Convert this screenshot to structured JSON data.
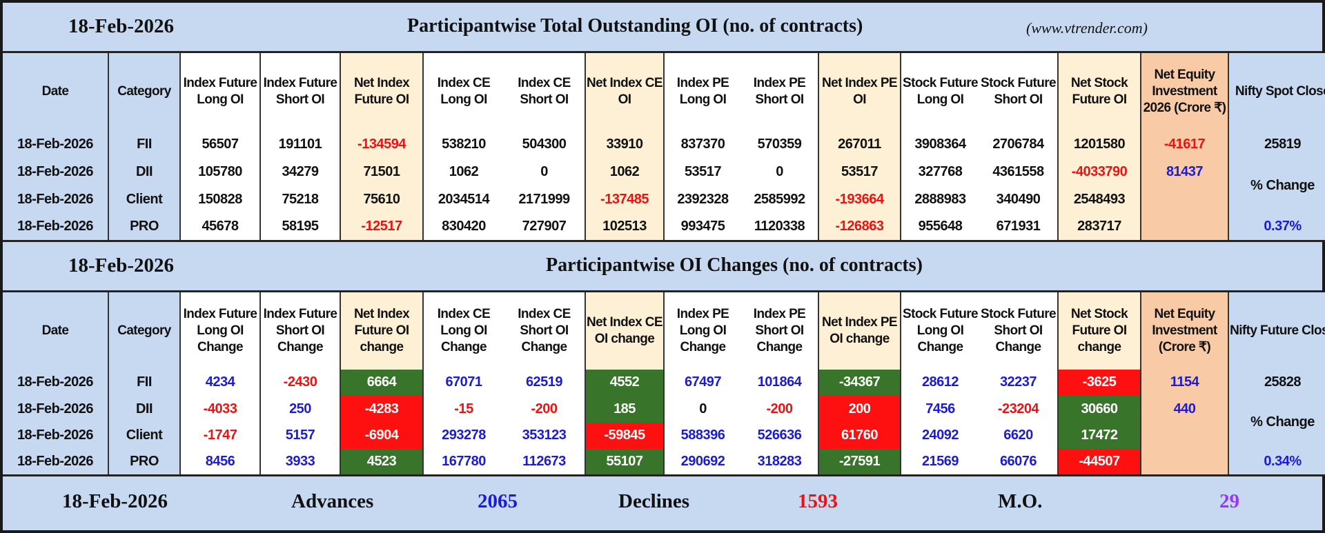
{
  "table1": {
    "date": "18-Feb-2026",
    "title": "Participantwise Total Outstanding OI (no. of contracts)",
    "site": "(www.vtrender.com)",
    "headers": [
      "Date",
      "Category",
      "Index Future Long OI",
      "Index Future Short OI",
      "Net Index Future OI",
      "Index CE Long OI",
      "Index CE Short OI",
      "Net Index CE OI",
      "Index PE Long OI",
      "Index PE Short OI",
      "Net Index PE OI",
      "Stock Future Long OI",
      "Stock Future Short OI",
      "Net Stock Future OI",
      "Net Equity Investment 2026 (Crore ₹)",
      "Nifty Spot Close"
    ],
    "rows": [
      {
        "date": "18-Feb-2026",
        "category": "FII",
        "values": [
          "56507",
          "191101",
          "-134594",
          "538210",
          "504300",
          "33910",
          "837370",
          "570359",
          "267011",
          "3908364",
          "2706784",
          "1201580"
        ],
        "net_equity": "-41617"
      },
      {
        "date": "18-Feb-2026",
        "category": "DII",
        "values": [
          "105780",
          "34279",
          "71501",
          "1062",
          "0",
          "1062",
          "53517",
          "0",
          "53517",
          "327768",
          "4361558",
          "-4033790"
        ],
        "net_equity": "81437"
      },
      {
        "date": "18-Feb-2026",
        "category": "Client",
        "values": [
          "150828",
          "75218",
          "75610",
          "2034514",
          "2171999",
          "-137485",
          "2392328",
          "2585992",
          "-193664",
          "2888983",
          "340490",
          "2548493"
        ],
        "net_equity": ""
      },
      {
        "date": "18-Feb-2026",
        "category": "PRO",
        "values": [
          "45678",
          "58195",
          "-12517",
          "830420",
          "727907",
          "102513",
          "993475",
          "1120338",
          "-126863",
          "955648",
          "671931",
          "283717"
        ],
        "net_equity": ""
      }
    ],
    "nifty": {
      "value": "25819",
      "change_label": "% Change",
      "change": "0.37%"
    }
  },
  "table2": {
    "date": "18-Feb-2026",
    "title": "Participantwise OI Changes (no. of contracts)",
    "headers": [
      "Date",
      "Category",
      "Index Future Long OI Change",
      "Index Future Short OI Change",
      "Net Index Future OI change",
      "Index CE Long OI Change",
      "Index CE Short OI Change",
      "Net Index CE OI change",
      "Index PE Long OI Change",
      "Index PE Short OI Change",
      "Net Index PE OI change",
      "Stock Future Long OI Change",
      "Stock Future Short OI Change",
      "Net Stock Future OI change",
      "Net Equity Investment (Crore ₹)",
      "Nifty Future Close"
    ],
    "rows": [
      {
        "date": "18-Feb-2026",
        "category": "FII",
        "values": [
          "4234",
          "-2430",
          "6664",
          "67071",
          "62519",
          "4552",
          "67497",
          "101864",
          "-34367",
          "28612",
          "32237",
          "-3625"
        ],
        "highlights": [
          "green",
          "green",
          "green",
          "red"
        ],
        "net_equity": "1154"
      },
      {
        "date": "18-Feb-2026",
        "category": "DII",
        "values": [
          "-4033",
          "250",
          "-4283",
          "-15",
          "-200",
          "185",
          "0",
          "-200",
          "200",
          "7456",
          "-23204",
          "30660"
        ],
        "highlights": [
          "red",
          "green",
          "red",
          "green"
        ],
        "net_equity": "440"
      },
      {
        "date": "18-Feb-2026",
        "category": "Client",
        "values": [
          "-1747",
          "5157",
          "-6904",
          "293278",
          "353123",
          "-59845",
          "588396",
          "526636",
          "61760",
          "24092",
          "6620",
          "17472"
        ],
        "highlights": [
          "red",
          "red",
          "red",
          "green"
        ],
        "net_equity": ""
      },
      {
        "date": "18-Feb-2026",
        "category": "PRO",
        "values": [
          "8456",
          "3933",
          "4523",
          "167780",
          "112673",
          "55107",
          "290692",
          "318283",
          "-27591",
          "21569",
          "66076",
          "-44507"
        ],
        "highlights": [
          "green",
          "green",
          "green",
          "red"
        ],
        "net_equity": ""
      }
    ],
    "nifty": {
      "value": "25828",
      "change_label": "% Change",
      "change": "0.34%"
    }
  },
  "footer": {
    "date": "18-Feb-2026",
    "advances_label": "Advances",
    "advances": "2065",
    "declines_label": "Declines",
    "declines": "1593",
    "mo_label": "M.O.",
    "mo": "29"
  },
  "colors": {
    "band": "#c6d9f1",
    "net_col": "#fdf0d5",
    "equity_col": "#f8cba6",
    "green": "#38752a",
    "red": "#ff1010",
    "positive_text": "#1a1ad8",
    "negative_text": "#ee1111",
    "mo_text": "#9933ff"
  }
}
